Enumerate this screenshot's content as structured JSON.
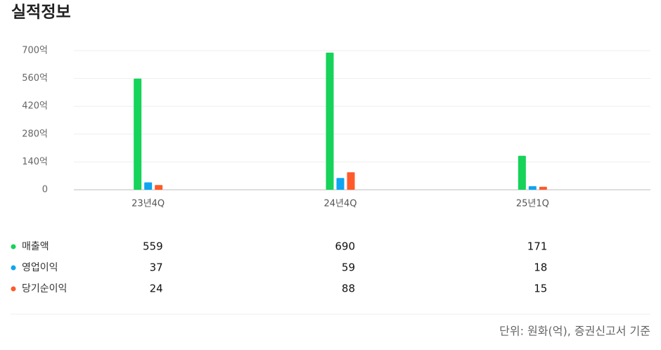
{
  "title": "실적정보",
  "chart_data": {
    "type": "bar",
    "categories": [
      "23년4Q",
      "24년4Q",
      "25년1Q"
    ],
    "series": [
      {
        "name": "매출액",
        "color": "#16d35a",
        "values": [
          559,
          690,
          171
        ]
      },
      {
        "name": "영업이익",
        "color": "#0ea5f0",
        "values": [
          37,
          59,
          18
        ]
      },
      {
        "name": "당기순이익",
        "color": "#ff5a2a",
        "values": [
          24,
          88,
          15
        ]
      }
    ],
    "ylim": [
      0,
      700
    ],
    "yticks": [
      0,
      {
        "value": 140,
        "label": "140억"
      },
      {
        "value": 280,
        "label": "280억"
      },
      {
        "value": 420,
        "label": "420억"
      },
      {
        "value": 560,
        "label": "560억"
      },
      {
        "value": 700,
        "label": "700억"
      }
    ],
    "grid": true
  },
  "footer": "단위: 원화(억), 증권신고서 기준"
}
